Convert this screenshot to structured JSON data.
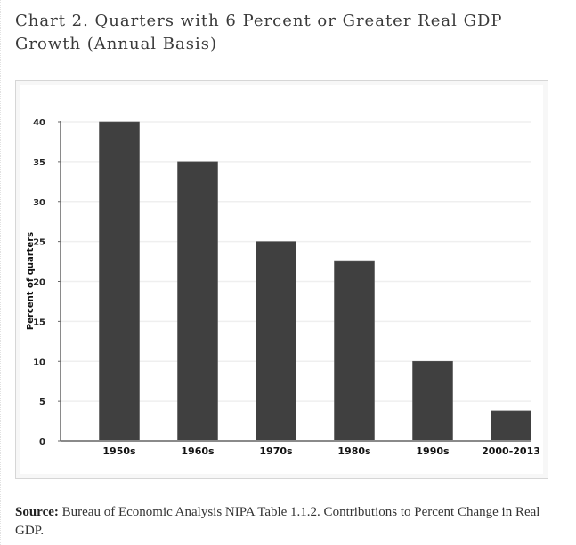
{
  "header": {
    "title": "Chart 2. Quarters with 6 Percent or Greater Real GDP Growth (Annual Basis)"
  },
  "footer": {
    "source_label": "Source:",
    "source_text": " Bureau of Economic Analysis NIPA Table 1.1.2. Contributions to Percent Change in Real GDP."
  },
  "colors": {
    "bar": "#404040",
    "axis": "#8a8a8a",
    "grid": "#efefef"
  },
  "chart_data": {
    "type": "bar",
    "title": "Chart 2. Quarters with 6 Percent or Greater Real GDP Growth (Annual Basis)",
    "xlabel": "",
    "ylabel": "Percent of quarters",
    "categories": [
      "1950s",
      "1960s",
      "1970s",
      "1980s",
      "1990s",
      "2000-2013"
    ],
    "values": [
      40,
      35,
      25,
      22.5,
      10,
      3.8
    ],
    "ylim": [
      0,
      40
    ],
    "yticks": [
      0,
      5,
      10,
      15,
      20,
      25,
      30,
      35,
      40
    ],
    "grid": true,
    "legend": "none"
  }
}
